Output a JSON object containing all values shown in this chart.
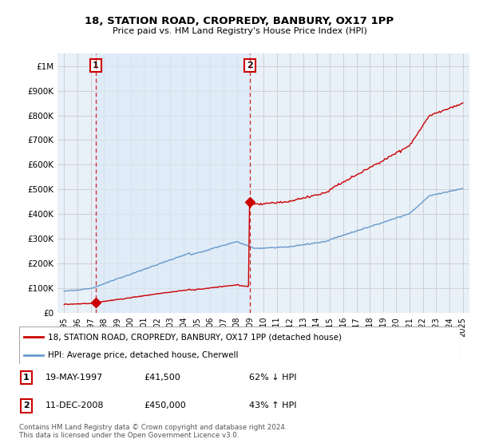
{
  "title": "18, STATION ROAD, CROPREDY, BANBURY, OX17 1PP",
  "subtitle": "Price paid vs. HM Land Registry's House Price Index (HPI)",
  "red_label": "18, STATION ROAD, CROPREDY, BANBURY, OX17 1PP (detached house)",
  "blue_label": "HPI: Average price, detached house, Cherwell",
  "footnote": "Contains HM Land Registry data © Crown copyright and database right 2024.\nThis data is licensed under the Open Government Licence v3.0.",
  "marker1": {
    "date_num": 1997.38,
    "price": 41500,
    "label": "1",
    "date_str": "19-MAY-1997",
    "price_str": "£41,500",
    "pct_str": "62% ↓ HPI"
  },
  "marker2": {
    "date_num": 2008.95,
    "price": 450000,
    "label": "2",
    "date_str": "11-DEC-2008",
    "price_str": "£450,000",
    "pct_str": "43% ↑ HPI"
  },
  "xlim": [
    1994.5,
    2025.5
  ],
  "ylim": [
    0,
    1050000
  ],
  "yticks": [
    0,
    100000,
    200000,
    300000,
    400000,
    500000,
    600000,
    700000,
    800000,
    900000,
    1000000
  ],
  "ytick_labels": [
    "£0",
    "£100K",
    "£200K",
    "£300K",
    "£400K",
    "£500K",
    "£600K",
    "£700K",
    "£800K",
    "£900K",
    "£1M"
  ],
  "xticks": [
    1995,
    1996,
    1997,
    1998,
    1999,
    2000,
    2001,
    2002,
    2003,
    2004,
    2005,
    2006,
    2007,
    2008,
    2009,
    2010,
    2011,
    2012,
    2013,
    2014,
    2015,
    2016,
    2017,
    2018,
    2019,
    2020,
    2021,
    2022,
    2023,
    2024,
    2025
  ],
  "red_color": "#cc0000",
  "blue_color": "#6699cc",
  "blue_fill_color": "#dce9f7",
  "grid_color": "#cccccc",
  "bg_color": "#e8f0f8"
}
